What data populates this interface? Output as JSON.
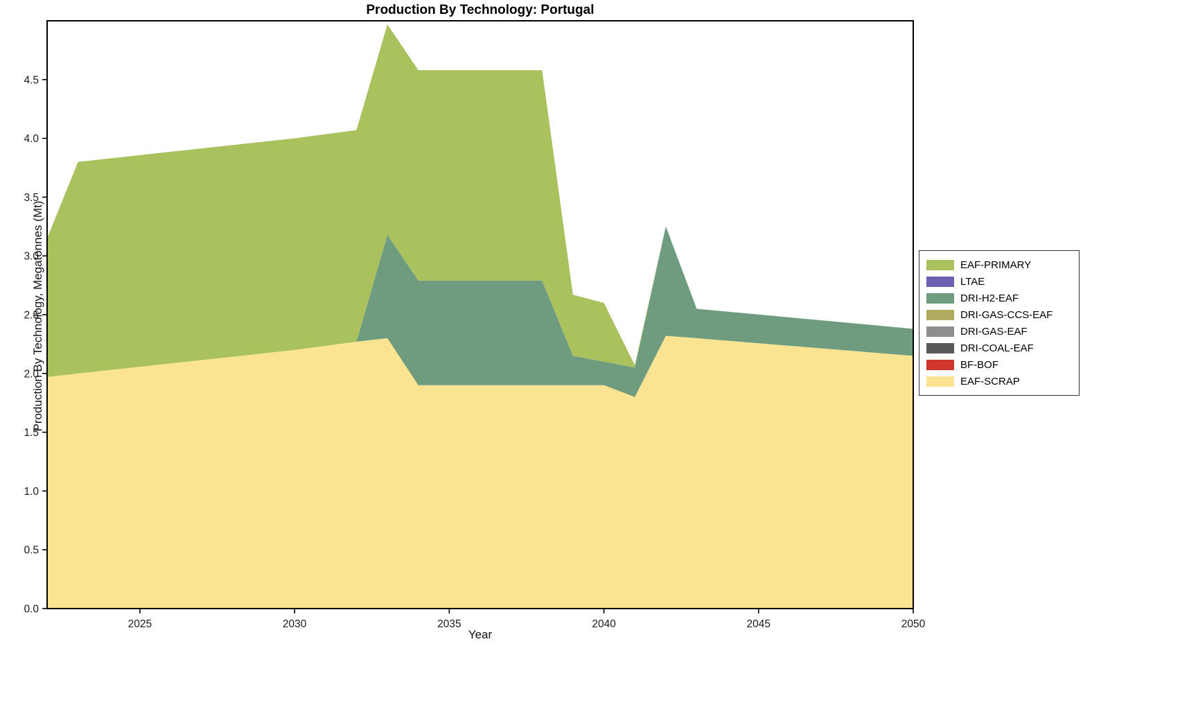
{
  "chart_data": {
    "type": "area",
    "stacked": true,
    "title": "Production By Technology: Portugal",
    "xlabel": "Year",
    "ylabel": "Production By Technology, Megatonnes (Mt)",
    "xlim": [
      2022,
      2050
    ],
    "ylim": [
      0,
      5.0
    ],
    "grid": false,
    "legend_position": "right-outside",
    "xtick_vals": [
      2025,
      2030,
      2035,
      2040,
      2045,
      2050
    ],
    "xtick_labels": [
      "2025",
      "2030",
      "2035",
      "2040",
      "2045",
      "2050"
    ],
    "ytick_vals": [
      0,
      0.5,
      1.0,
      1.5,
      2.0,
      2.5,
      3.0,
      3.5,
      4.0,
      4.5
    ],
    "ytick_labels": [
      "0.0",
      "0.5",
      "1.0",
      "1.5",
      "2.0",
      "2.5",
      "3.0",
      "3.5",
      "4.0",
      "4.5"
    ],
    "x": [
      2022,
      2023,
      2030,
      2032,
      2033,
      2034,
      2038,
      2039,
      2040,
      2041,
      2042,
      2043,
      2050
    ],
    "series": [
      {
        "name": "EAF-SCRAP",
        "color": "#fbe491",
        "values": [
          1.97,
          2.0,
          2.2,
          2.27,
          2.3,
          1.9,
          1.9,
          1.9,
          1.9,
          1.8,
          2.32,
          2.3,
          2.15
        ]
      },
      {
        "name": "BF-BOF",
        "color": "#d1342b",
        "values": [
          0,
          0,
          0,
          0,
          0,
          0,
          0,
          0,
          0,
          0,
          0,
          0,
          0
        ]
      },
      {
        "name": "DRI-COAL-EAF",
        "color": "#595959",
        "values": [
          0,
          0,
          0,
          0,
          0,
          0,
          0,
          0,
          0,
          0,
          0,
          0,
          0
        ]
      },
      {
        "name": "DRI-GAS-EAF",
        "color": "#8e8e8e",
        "values": [
          0,
          0,
          0,
          0,
          0,
          0,
          0,
          0,
          0,
          0,
          0,
          0,
          0
        ]
      },
      {
        "name": "DRI-GAS-CCS-EAF",
        "color": "#b2ab5f",
        "values": [
          0,
          0,
          0,
          0,
          0,
          0,
          0,
          0,
          0,
          0,
          0,
          0,
          0
        ]
      },
      {
        "name": "DRI-H2-EAF",
        "color": "#6f9c7f",
        "values": [
          0,
          0,
          0,
          0,
          0.88,
          0.89,
          0.89,
          0.25,
          0.2,
          0.25,
          0.93,
          0.25,
          0.23
        ]
      },
      {
        "name": "LTAE",
        "color": "#6c61b0",
        "values": [
          0,
          0,
          0,
          0,
          0,
          0,
          0,
          0,
          0,
          0,
          0,
          0,
          0
        ]
      },
      {
        "name": "EAF-PRIMARY",
        "color": "#a9c25e",
        "values": [
          1.18,
          1.8,
          1.8,
          1.8,
          1.79,
          1.79,
          1.79,
          0.52,
          0.5,
          0.02,
          0,
          0,
          0
        ]
      }
    ]
  }
}
